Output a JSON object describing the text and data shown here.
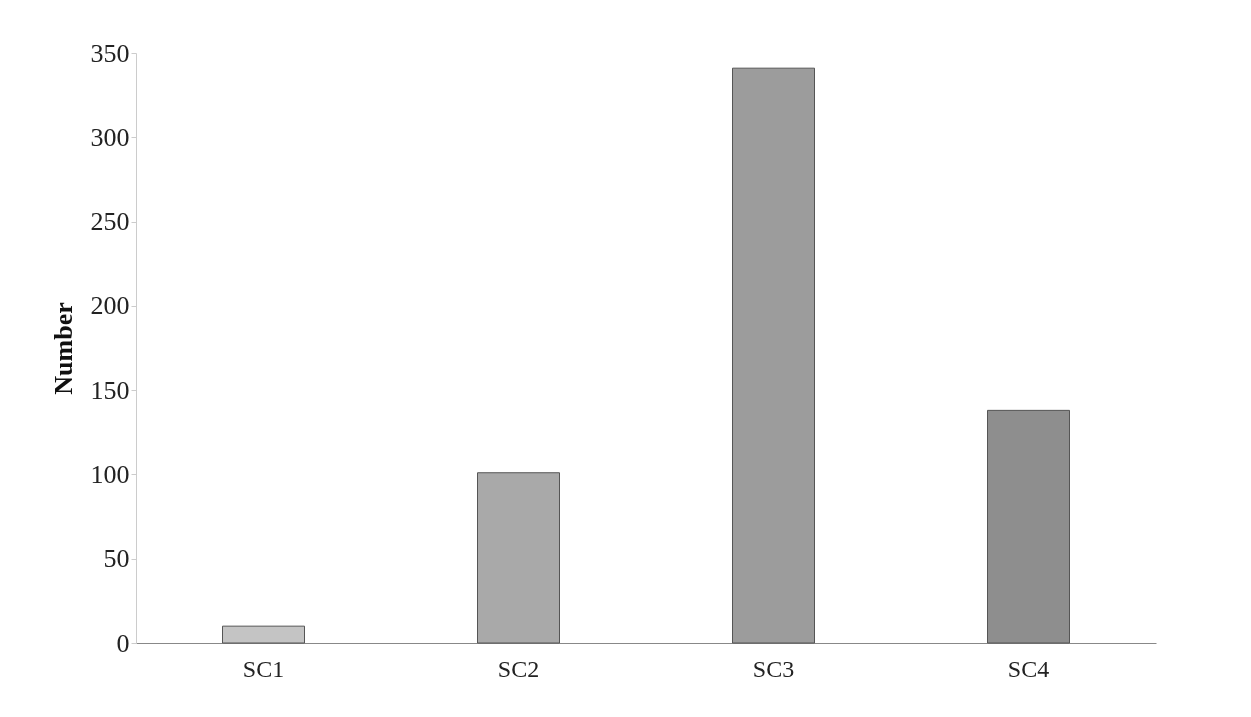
{
  "chart_data": {
    "type": "bar",
    "ylabel": "Number",
    "categories": [
      "SC1",
      "SC2",
      "SC3",
      "SC4"
    ],
    "values": [
      10,
      101,
      341,
      138
    ],
    "colors": [
      "#c4c4c4",
      "#a9a9a9",
      "#9c9c9c",
      "#8e8e8e"
    ],
    "ylim": [
      0,
      350
    ],
    "yticks": [
      0,
      50,
      100,
      150,
      200,
      250,
      300,
      350
    ],
    "grid": false,
    "legend": false
  }
}
